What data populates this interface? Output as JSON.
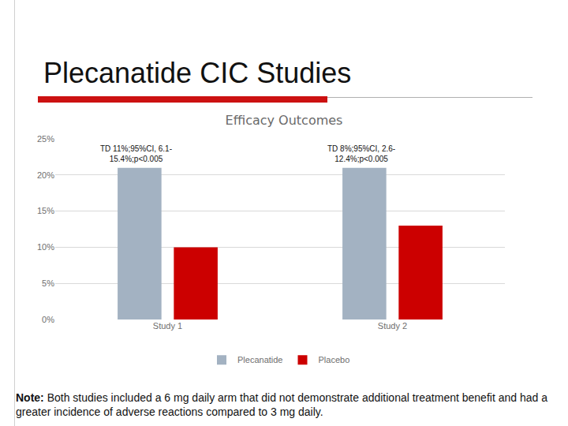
{
  "slide_title": "Plecanatide CIC Studies",
  "note": {
    "label": "Note:",
    "text": "Both studies included a 6 mg daily arm that did not demonstrate additional treatment benefit and had a greater incidence of adverse reactions compared to 3 mg daily."
  },
  "chart_data": {
    "type": "bar",
    "title": "Efficacy Outcomes",
    "categories": [
      "Study 1",
      "Study 2"
    ],
    "series": [
      {
        "name": "Plecanatide",
        "color": "#a3b2c2",
        "values": [
          21,
          21
        ]
      },
      {
        "name": "Placebo",
        "color": "#cc0000",
        "values": [
          10,
          13
        ]
      }
    ],
    "ylim": [
      0,
      25
    ],
    "yticks": [
      {
        "value": 0,
        "label": "0%"
      },
      {
        "value": 5,
        "label": "5%"
      },
      {
        "value": 10,
        "label": "10%"
      },
      {
        "value": 15,
        "label": "15%"
      },
      {
        "value": 20,
        "label": "20%"
      },
      {
        "value": 25,
        "label": "25%"
      }
    ],
    "grid": true,
    "legend": "bottom",
    "annotations": [
      {
        "category": "Study 1",
        "text": [
          "TD 11%;95%CI, 6.1-",
          "15.4%;p<0.005"
        ]
      },
      {
        "category": "Study 2",
        "text": [
          "TD 8%;95%CI, 2.6-",
          "12.4%;p<0.005"
        ]
      }
    ]
  }
}
